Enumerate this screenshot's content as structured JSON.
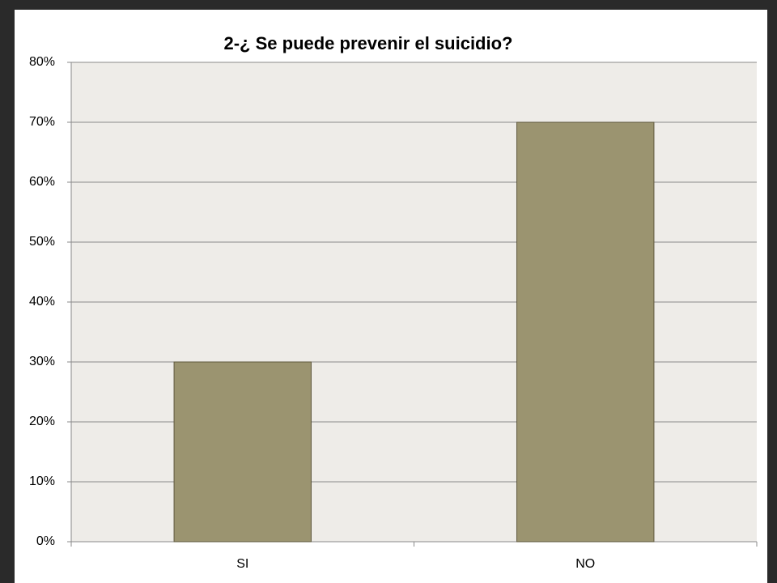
{
  "chart_data": {
    "type": "bar",
    "title": "2-¿ Se puede prevenir el suicidio?",
    "categories": [
      "SI",
      "NO"
    ],
    "values": [
      30,
      70
    ],
    "color": "#9b9470",
    "ylim": [
      0,
      80
    ],
    "yticks": [
      {
        "value": 0,
        "label": "0%"
      },
      {
        "value": 10,
        "label": "10%"
      },
      {
        "value": 20,
        "label": "20%"
      },
      {
        "value": 30,
        "label": "30%"
      },
      {
        "value": 40,
        "label": "40%"
      },
      {
        "value": 50,
        "label": "50%"
      },
      {
        "value": 60,
        "label": "60%"
      },
      {
        "value": 70,
        "label": "70%"
      },
      {
        "value": 80,
        "label": "80%"
      }
    ],
    "grid": true
  }
}
